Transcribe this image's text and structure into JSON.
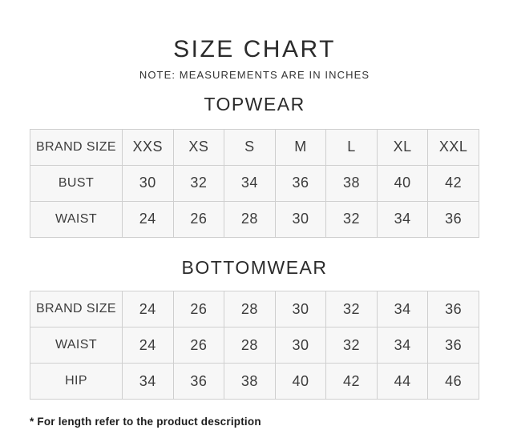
{
  "page": {
    "title": "SIZE CHART",
    "note": "NOTE: MEASUREMENTS ARE IN INCHES",
    "footnote": "* For length refer to the product description"
  },
  "colors": {
    "background": "#ffffff",
    "cell_fill": "#f7f7f7",
    "cell_border": "#cfcfcf",
    "table_text": "#3c3c3c",
    "heading_text": "#2b2b2b",
    "footnote_text": "#1c1c1c"
  },
  "sections": [
    {
      "heading": "TOPWEAR",
      "table": {
        "rows": [
          {
            "label": "BRAND SIZE",
            "values": [
              "XXS",
              "XS",
              "S",
              "M",
              "L",
              "XL",
              "XXL"
            ]
          },
          {
            "label": "BUST",
            "values": [
              "30",
              "32",
              "34",
              "36",
              "38",
              "40",
              "42"
            ]
          },
          {
            "label": "WAIST",
            "values": [
              "24",
              "26",
              "28",
              "30",
              "32",
              "34",
              "36"
            ]
          }
        ]
      }
    },
    {
      "heading": "BOTTOMWEAR",
      "table": {
        "rows": [
          {
            "label": "BRAND SIZE",
            "values": [
              "24",
              "26",
              "28",
              "30",
              "32",
              "34",
              "36"
            ]
          },
          {
            "label": "WAIST",
            "values": [
              "24",
              "26",
              "28",
              "30",
              "32",
              "34",
              "36"
            ]
          },
          {
            "label": "HIP",
            "values": [
              "34",
              "36",
              "38",
              "40",
              "42",
              "44",
              "46"
            ]
          }
        ]
      }
    }
  ]
}
